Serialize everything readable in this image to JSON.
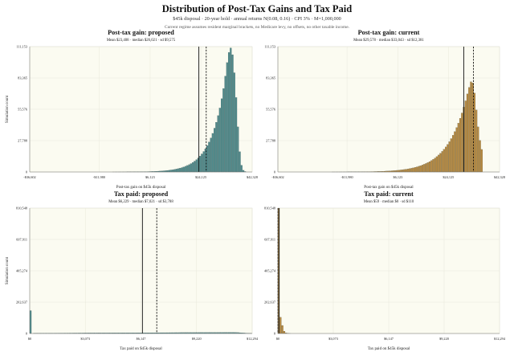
{
  "header": {
    "title": "Distribution of Post-Tax Gains and Tax Paid",
    "subtitle": "$45k disposal · 20-year hold · annual returns N(0.08, 0.16) · CPI 3% · M=1,000,000",
    "note": "Current regime assumes resident marginal brackets, no Medicare levy, no offsets, no other taxable income."
  },
  "colors": {
    "teal": "#4f8a8b",
    "gold": "#b8893e",
    "plot_bg": "#fbfbf1",
    "grid": "#e8e8dc"
  },
  "chart_data": [
    {
      "id": "a",
      "type": "bar",
      "title": "Post-tax gain: proposed",
      "stats": "Mean $23,408 · median $26,021 · sd $9,575",
      "xlabel": "Post-tax gain on $45k disposal",
      "ylabel": "Simulation count",
      "xlim": [
        -36602,
        42328
      ],
      "ylim": [
        0,
        111153
      ],
      "xticks": [
        -36602,
        -11980,
        6123,
        24125,
        42328
      ],
      "xtick_labels": [
        "-$36,602",
        "-$11,980",
        "$6,123",
        "$24,125",
        "$42,328"
      ],
      "yticks": [
        0,
        27788,
        55576,
        83365,
        111153
      ],
      "ytick_labels": [
        "0",
        "27,788",
        "55,576",
        "83,365",
        "111,153"
      ],
      "mean": 23408,
      "median": 26021,
      "bin_start": -36602,
      "bin_width": 640,
      "values": [
        0,
        0,
        0,
        0,
        0,
        0,
        0,
        0,
        0,
        0,
        0,
        0,
        0,
        0,
        0,
        0,
        0,
        0,
        0,
        0,
        0,
        0,
        0,
        0,
        0,
        0,
        0,
        0,
        0,
        0,
        0,
        0,
        0,
        0,
        0,
        0,
        0,
        0,
        0,
        0,
        0,
        0,
        0,
        0,
        0,
        0,
        10,
        10,
        20,
        20,
        30,
        30,
        40,
        50,
        60,
        70,
        80,
        90,
        110,
        130,
        150,
        170,
        200,
        230,
        270,
        310,
        360,
        410,
        470,
        540,
        620,
        710,
        810,
        930,
        1060,
        1210,
        1380,
        1580,
        1800,
        2050,
        2340,
        2660,
        3030,
        3450,
        3930,
        4470,
        5080,
        5780,
        6570,
        7460,
        8480,
        9630,
        10940,
        12420,
        14100,
        16010,
        18170,
        20630,
        23420,
        26580,
        30170,
        34240,
        38850,
        44080,
        50000,
        56700,
        65000,
        74000,
        85000,
        97000,
        106000,
        110000,
        104000,
        88000,
        66000,
        40000,
        18000,
        6000,
        1500,
        400,
        0,
        0,
        0,
        0,
        0
      ]
    },
    {
      "id": "b",
      "type": "bar",
      "title": "Post-tax gain: current",
      "stats": "Mean $29,578 · median $33,043 · sd $12,381",
      "xlabel": "Post-tax gain on $45k disposal",
      "ylabel": "",
      "xlim": [
        -36602,
        42328
      ],
      "ylim": [
        0,
        111153
      ],
      "xticks": [
        -36602,
        -11980,
        6123,
        24125,
        42328
      ],
      "xtick_labels": [
        "-$36,602",
        "-$11,980",
        "$6,123",
        "$24,125",
        "$42,328"
      ],
      "yticks": [
        0,
        27788,
        55576,
        83365,
        111153
      ],
      "ytick_labels": [
        "0",
        "27,788",
        "55,576",
        "83,365",
        "111,153"
      ],
      "mean": 29578,
      "median": 33043,
      "bin_start": -36602,
      "bin_width": 640,
      "values": [
        0,
        0,
        0,
        0,
        0,
        0,
        0,
        0,
        0,
        0,
        0,
        0,
        0,
        0,
        0,
        0,
        0,
        0,
        0,
        0,
        0,
        0,
        0,
        0,
        0,
        0,
        0,
        0,
        0,
        0,
        10,
        10,
        10,
        20,
        20,
        30,
        30,
        40,
        50,
        60,
        70,
        80,
        90,
        100,
        110,
        130,
        150,
        170,
        190,
        220,
        250,
        280,
        320,
        360,
        400,
        450,
        500,
        560,
        620,
        690,
        770,
        860,
        960,
        1070,
        1190,
        1320,
        1470,
        1630,
        1810,
        2010,
        2230,
        2470,
        2740,
        3040,
        3370,
        3730,
        4130,
        4570,
        5060,
        5600,
        6190,
        6840,
        7560,
        8350,
        9220,
        10180,
        11230,
        12390,
        13660,
        15060,
        16600,
        18290,
        20150,
        22190,
        24430,
        26890,
        29590,
        32560,
        35820,
        39400,
        43320,
        47620,
        52330,
        57480,
        63100,
        69220,
        75000,
        80000,
        79000,
        70000,
        55000,
        40000,
        28000,
        20000
      ]
    },
    {
      "id": "c",
      "type": "bar",
      "title": "Tax paid: proposed",
      "stats": "Mean $6,229 · median $7,021 · sd $3,788",
      "xlabel": "Tax paid on $45k disposal",
      "ylabel": "Simulation count",
      "xlim": [
        0,
        12294
      ],
      "ylim": [
        0,
        810548
      ],
      "xticks": [
        0,
        3073,
        6147,
        9220,
        12294
      ],
      "xtick_labels": [
        "$0",
        "$3,073",
        "$6,147",
        "$9,220",
        "$12,294"
      ],
      "yticks": [
        0,
        202637,
        405274,
        607911,
        810548
      ],
      "ytick_labels": [
        "0",
        "202,637",
        "405,274",
        "607,911",
        "810,548"
      ],
      "mean": 6229,
      "median": 7021,
      "bin_start": 0,
      "bin_width": 102.45,
      "values": [
        148000,
        0,
        1600,
        1700,
        1750,
        1800,
        1850,
        1900,
        1950,
        2000,
        2050,
        2100,
        2150,
        2200,
        2250,
        2300,
        2350,
        2400,
        2450,
        2500,
        2550,
        2600,
        2650,
        2700,
        2750,
        2800,
        2850,
        2900,
        2950,
        3000,
        3050,
        3100,
        3150,
        3200,
        3250,
        3300,
        3350,
        3400,
        3450,
        3500,
        3550,
        3600,
        3650,
        3700,
        3750,
        3800,
        3850,
        3900,
        3950,
        4000,
        4050,
        4100,
        4150,
        4200,
        4250,
        4300,
        4350,
        4400,
        4450,
        4500,
        4550,
        4600,
        4650,
        4700,
        4750,
        4800,
        4850,
        4900,
        4950,
        5000,
        5050,
        5100,
        5150,
        5200,
        5250,
        5300,
        5350,
        5400,
        5450,
        5500,
        5550,
        5600,
        5650,
        5700,
        5750,
        5800,
        5850,
        5900,
        5950,
        6000,
        6050,
        6100,
        6150,
        6200,
        6250,
        6300,
        6350,
        6400,
        6450,
        6500,
        6550,
        6600,
        6650,
        6700,
        6750,
        6800,
        6850,
        6900,
        6950,
        7000,
        6800,
        6400,
        5800,
        5000,
        4200,
        3400,
        2600,
        1800,
        1100,
        500
      ]
    },
    {
      "id": "d",
      "type": "bar",
      "title": "Tax paid: current",
      "stats": "Mean $59 · median $0 · sd $110",
      "xlabel": "Tax paid on $45k disposal",
      "ylabel": "",
      "xlim": [
        0,
        12294
      ],
      "ylim": [
        0,
        810548
      ],
      "xticks": [
        0,
        3073,
        6147,
        9220,
        12294
      ],
      "xtick_labels": [
        "$0",
        "$3,073",
        "$6,147",
        "$9,220",
        "$12,294"
      ],
      "yticks": [
        0,
        202637,
        405274,
        607911,
        810548
      ],
      "ytick_labels": [
        "0",
        "202,637",
        "405,274",
        "607,911",
        "810,548"
      ],
      "mean": 59,
      "median": 0,
      "bin_start": 0,
      "bin_width": 102.45,
      "values": [
        810548,
        105000,
        52000,
        15000,
        3500,
        700,
        100
      ]
    }
  ]
}
